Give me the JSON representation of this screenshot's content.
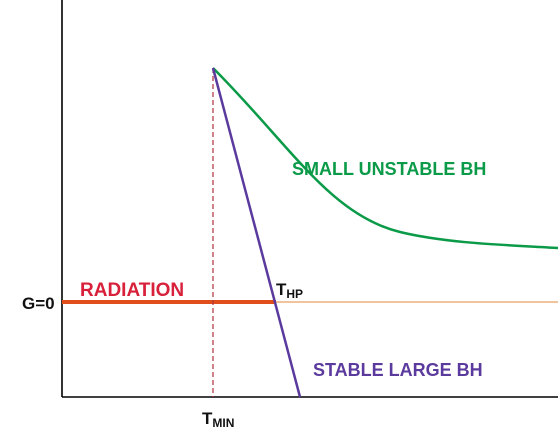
{
  "labels": {
    "g_zero": "G=0",
    "radiation": "RADIATION",
    "small_bh": "SMALL UNSTABLE BH",
    "large_bh": "STABLE LARGE BH",
    "t_hp_main": "T",
    "t_hp_sub": "HP",
    "t_min_main": "T",
    "t_min_sub": "MIN"
  },
  "colors": {
    "axis": "#000000",
    "radiation": "#e04e1b",
    "zero_line": "#e8a060",
    "small_bh": "#0a9a48",
    "large_bh": "#5b3a9e",
    "dashed": "#b0303a",
    "radiation_label": "#d8203a",
    "text": "#111111"
  }
}
